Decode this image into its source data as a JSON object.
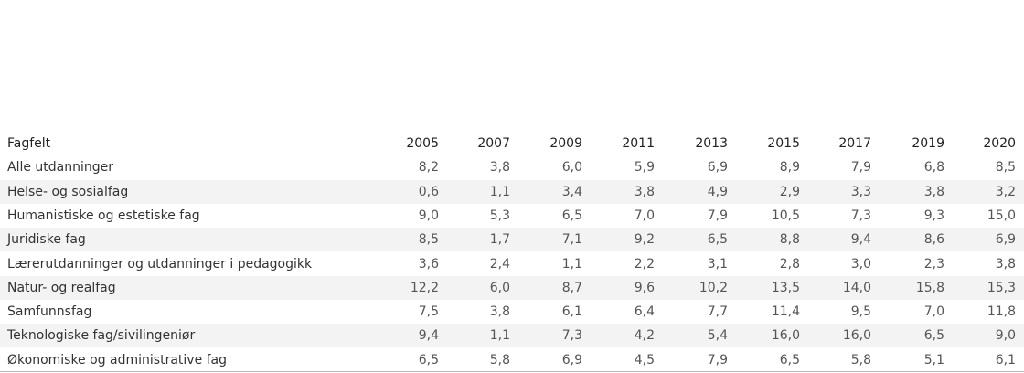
{
  "table": {
    "columns": [
      "Fagfelt",
      "2005",
      "2007",
      "2009",
      "2011",
      "2013",
      "2015",
      "2017",
      "2019",
      "2020"
    ],
    "rows": [
      [
        "Alle utdanninger",
        "8,2",
        "3,8",
        "6,0",
        "5,9",
        "6,9",
        "8,9",
        "7,9",
        "6,8",
        "8,5"
      ],
      [
        "Helse- og sosialfag",
        "0,6",
        "1,1",
        "3,4",
        "3,8",
        "4,9",
        "2,9",
        "3,3",
        "3,8",
        "3,2"
      ],
      [
        "Humanistiske og estetiske fag",
        "9,0",
        "5,3",
        "6,5",
        "7,0",
        "7,9",
        "10,5",
        "7,3",
        "9,3",
        "15,0"
      ],
      [
        "Juridiske fag",
        "8,5",
        "1,7",
        "7,1",
        "9,2",
        "6,5",
        "8,8",
        "9,4",
        "8,6",
        "6,9"
      ],
      [
        "Lærerutdanninger og utdanninger i pedagogikk",
        "3,6",
        "2,4",
        "1,1",
        "2,2",
        "3,1",
        "2,8",
        "3,0",
        "2,3",
        "3,8"
      ],
      [
        "Natur- og realfag",
        "12,2",
        "6,0",
        "8,7",
        "9,6",
        "10,2",
        "13,5",
        "14,0",
        "15,8",
        "15,3"
      ],
      [
        "Samfunnsfag",
        "7,5",
        "3,8",
        "6,1",
        "6,4",
        "7,7",
        "11,4",
        "9,5",
        "7,0",
        "11,8"
      ],
      [
        "Teknologiske fag/sivilingeniør",
        "9,4",
        "1,1",
        "7,3",
        "4,2",
        "5,4",
        "16,0",
        "16,0",
        "6,5",
        "9,0"
      ],
      [
        "Økonomiske og administrative fag",
        "6,5",
        "5,8",
        "6,9",
        "4,5",
        "7,9",
        "6,5",
        "5,8",
        "5,1",
        "6,1"
      ]
    ]
  }
}
